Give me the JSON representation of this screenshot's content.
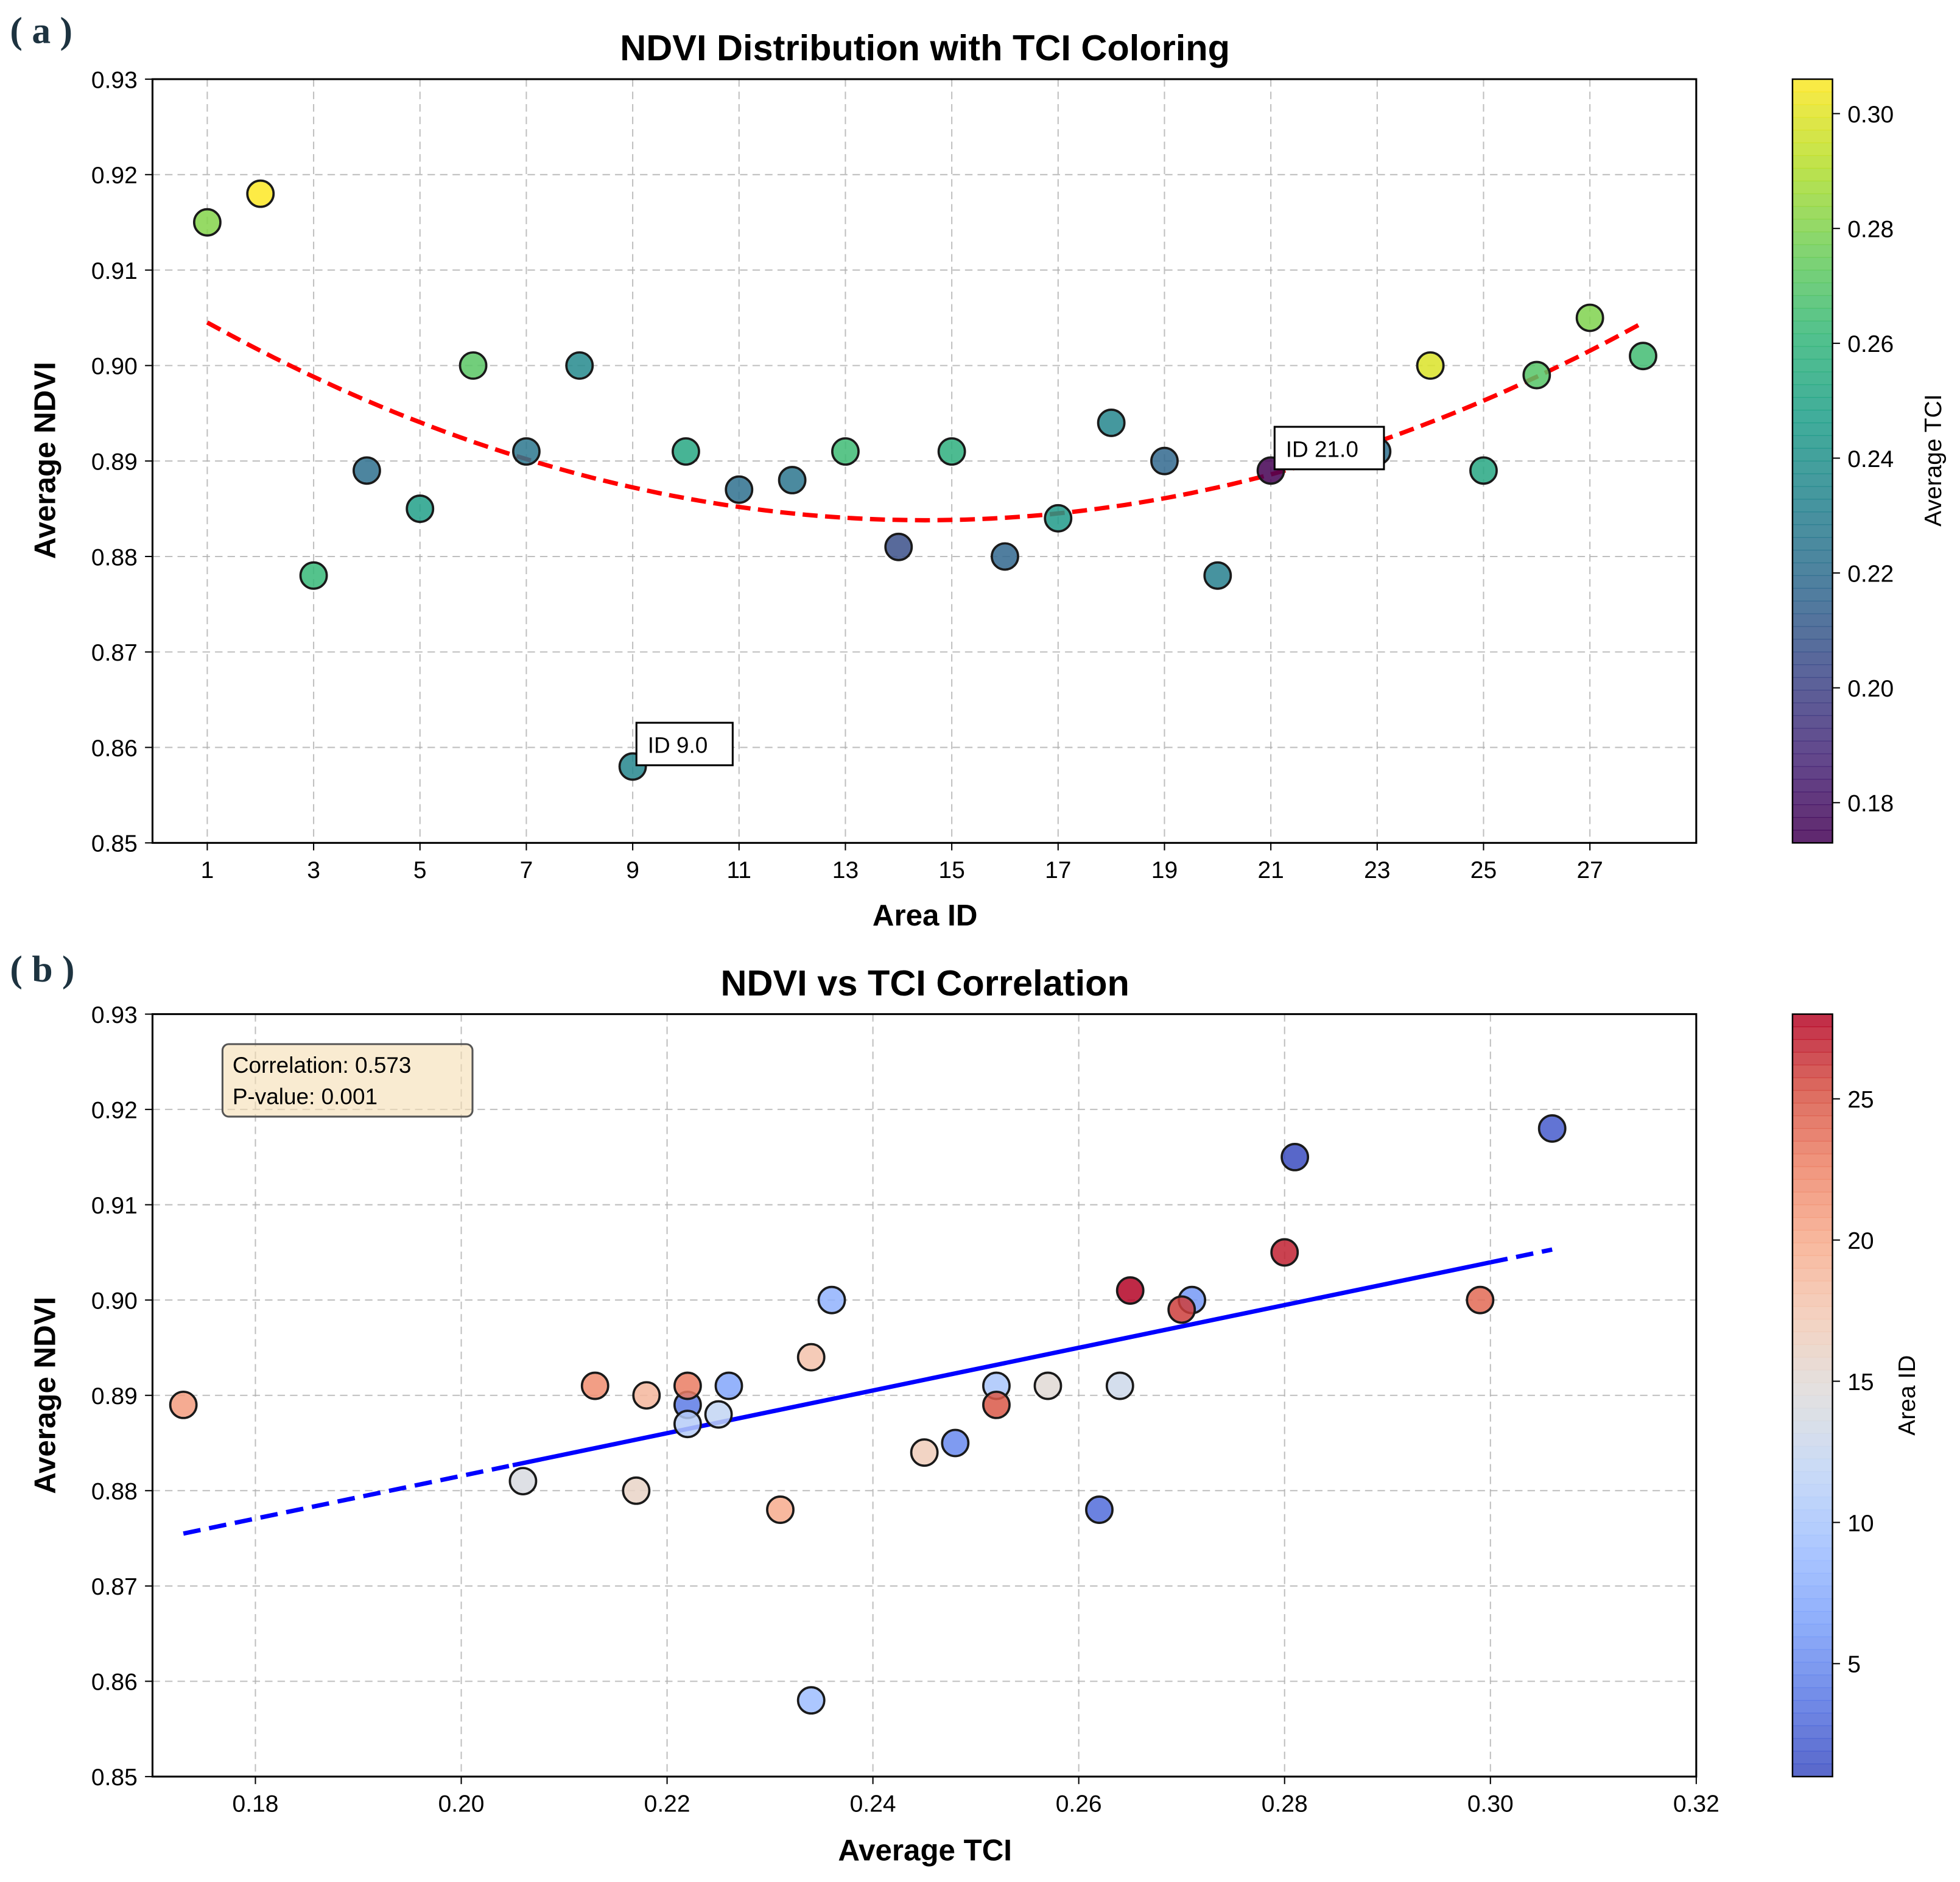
{
  "panels": {
    "a": "( a )",
    "b": "( b )"
  },
  "chart_data": [
    {
      "type": "scatter",
      "title": "NDVI Distribution with TCI Coloring",
      "xlabel": "Area ID",
      "ylabel": "Average NDVI",
      "xlim": [
        -0.03,
        29.0
      ],
      "ylim": [
        0.85,
        0.93
      ],
      "xticks": [
        1,
        3,
        5,
        7,
        9,
        11,
        13,
        15,
        17,
        19,
        21,
        23,
        25,
        27
      ],
      "yticks": [
        0.85,
        0.86,
        0.87,
        0.88,
        0.89,
        0.9,
        0.91,
        0.92,
        0.93
      ],
      "grid": true,
      "x": [
        1,
        2,
        3,
        4,
        5,
        6,
        7,
        8,
        9,
        10,
        11,
        12,
        13,
        14,
        15,
        16,
        17,
        18,
        19,
        20,
        21,
        22,
        23,
        24,
        25,
        26,
        27,
        28
      ],
      "y": [
        0.915,
        0.918,
        0.878,
        0.889,
        0.885,
        0.9,
        0.891,
        0.9,
        0.858,
        0.891,
        0.887,
        0.888,
        0.891,
        0.881,
        0.891,
        0.88,
        0.884,
        0.894,
        0.89,
        0.878,
        0.889,
        0.891,
        0.891,
        0.9,
        0.889,
        0.899,
        0.905,
        0.901
      ],
      "color_values": [
        0.281,
        0.306,
        0.262,
        0.222,
        0.248,
        0.271,
        0.226,
        0.236,
        0.234,
        0.252,
        0.222,
        0.225,
        0.264,
        0.206,
        0.257,
        0.217,
        0.245,
        0.234,
        0.218,
        0.231,
        0.173,
        0.213,
        0.222,
        0.299,
        0.252,
        0.27,
        0.28,
        0.265
      ],
      "colormap": "viridis",
      "colorbar": {
        "label": "Average TCI",
        "range": [
          0.173,
          0.306
        ],
        "ticks": [
          "0.18",
          "0.20",
          "0.22",
          "0.24",
          "0.26",
          "0.28",
          "0.30"
        ]
      },
      "trend": {
        "type": "quadratic",
        "style": "dashed",
        "color": "#ff0000",
        "vertex_x": 14.5,
        "vertex_y": 0.8838,
        "a": 0.0001136
      },
      "annotations": [
        {
          "text": "ID 9.0",
          "x": 9,
          "y": 0.858
        },
        {
          "text": "ID 21.0",
          "x": 21,
          "y": 0.889
        }
      ]
    },
    {
      "type": "scatter",
      "title": "NDVI vs TCI Correlation",
      "xlabel": "Average TCI",
      "ylabel": "Average NDVI",
      "xlim": [
        0.17,
        0.32
      ],
      "ylim": [
        0.85,
        0.93
      ],
      "xticks": [
        "0.18",
        "0.20",
        "0.22",
        "0.24",
        "0.26",
        "0.28",
        "0.30",
        "0.32"
      ],
      "yticks": [
        0.85,
        0.86,
        0.87,
        0.88,
        0.89,
        0.9,
        0.91,
        0.92,
        0.93
      ],
      "grid": true,
      "x": [
        0.281,
        0.306,
        0.262,
        0.222,
        0.248,
        0.271,
        0.226,
        0.236,
        0.234,
        0.252,
        0.222,
        0.225,
        0.264,
        0.206,
        0.257,
        0.217,
        0.245,
        0.234,
        0.218,
        0.231,
        0.173,
        0.213,
        0.222,
        0.299,
        0.252,
        0.27,
        0.28,
        0.265
      ],
      "y": [
        0.915,
        0.918,
        0.878,
        0.889,
        0.885,
        0.9,
        0.891,
        0.9,
        0.858,
        0.891,
        0.887,
        0.888,
        0.891,
        0.881,
        0.891,
        0.88,
        0.884,
        0.894,
        0.89,
        0.878,
        0.889,
        0.891,
        0.891,
        0.9,
        0.889,
        0.899,
        0.905,
        0.901
      ],
      "color_values": [
        1,
        2,
        3,
        4,
        5,
        6,
        7,
        8,
        9,
        10,
        11,
        12,
        13,
        14,
        15,
        16,
        17,
        18,
        19,
        20,
        21,
        22,
        23,
        24,
        25,
        26,
        27,
        28
      ],
      "colormap": "coolwarm",
      "colorbar": {
        "label": "Area ID",
        "range": [
          1,
          28
        ],
        "ticks": [
          "5",
          "10",
          "15",
          "20",
          "25"
        ]
      },
      "trend": {
        "type": "linear",
        "color": "#0000ff",
        "x_range": [
          0.173,
          0.306
        ],
        "y_at_start": 0.8755,
        "y_at_end": 0.9053,
        "solid_range": [
          0.205,
          0.3
        ]
      },
      "stats_box": {
        "correlation": "Correlation: 0.573",
        "pvalue": "P-value: 0.001"
      }
    }
  ]
}
